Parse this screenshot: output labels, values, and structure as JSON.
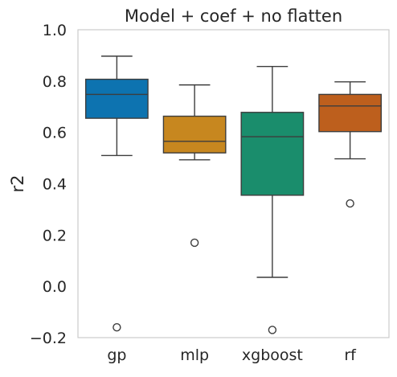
{
  "chart_data": {
    "type": "box",
    "title": "Model + coef + no flatten",
    "xlabel": "",
    "ylabel": "r2",
    "ylim": [
      -0.2,
      1.0
    ],
    "yticks": [
      -0.2,
      0.0,
      0.2,
      0.4,
      0.6,
      0.8,
      1.0
    ],
    "ytick_labels": [
      "−0.2",
      "0.0",
      "0.2",
      "0.4",
      "0.6",
      "0.8",
      "1.0"
    ],
    "grid": false,
    "categories": [
      "gp",
      "mlp",
      "xgboost",
      "rf"
    ],
    "boxes": [
      {
        "category": "gp",
        "whisker_low": 0.51,
        "q1": 0.655,
        "median": 0.748,
        "q3": 0.807,
        "whisker_high": 0.897,
        "outliers": [
          -0.16
        ],
        "color": "#0d73b0"
      },
      {
        "category": "mlp",
        "whisker_low": 0.493,
        "q1": 0.52,
        "median": 0.565,
        "q3": 0.663,
        "whisker_high": 0.785,
        "outliers": [
          0.17
        ],
        "color": "#c7871f"
      },
      {
        "category": "xgboost",
        "whisker_low": 0.035,
        "q1": 0.355,
        "median": 0.583,
        "q3": 0.678,
        "whisker_high": 0.857,
        "outliers": [
          -0.17
        ],
        "color": "#1a8d6c"
      },
      {
        "category": "rf",
        "whisker_low": 0.497,
        "q1": 0.603,
        "median": 0.703,
        "q3": 0.748,
        "whisker_high": 0.797,
        "outliers": [
          0.323
        ],
        "color": "#bd5f1d"
      }
    ]
  }
}
